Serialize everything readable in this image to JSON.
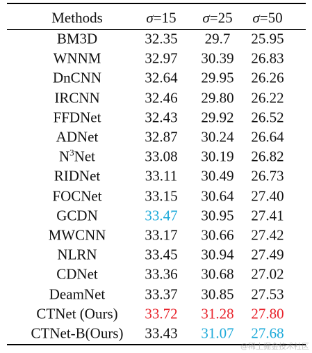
{
  "table": {
    "header": [
      "Methods",
      {
        "symbol": "σ",
        "text": "=15"
      },
      {
        "symbol": "σ",
        "text": "=25"
      },
      {
        "symbol": "σ",
        "text": "=50"
      }
    ],
    "rows": [
      [
        "BM3D",
        "32.35",
        "29.7",
        "25.95"
      ],
      [
        "WNNM",
        "32.97",
        "30.39",
        "26.83"
      ],
      [
        "DnCNN",
        "32.64",
        "29.95",
        "26.26"
      ],
      [
        "IRCNN",
        "32.46",
        "29.80",
        "26.22"
      ],
      [
        "FFDNet",
        "32.43",
        "29.92",
        "26.52"
      ],
      [
        "ADNet",
        "32.87",
        "30.24",
        "26.64"
      ],
      [
        {
          "base": "N",
          "sup": "3",
          "after": "Net"
        },
        "33.08",
        "30.19",
        "26.82"
      ],
      [
        "RIDNet",
        "33.11",
        "30.49",
        "26.73"
      ],
      [
        "FOCNet",
        "33.15",
        "30.64",
        "27.40"
      ],
      [
        "GCDN",
        {
          "text": "33.47",
          "color": "#1ba9d9"
        },
        "30.95",
        "27.41"
      ],
      [
        "MWCNN",
        "33.17",
        "30.66",
        "27.42"
      ],
      [
        "NLRN",
        "33.45",
        "30.94",
        "27.49"
      ],
      [
        "CDNet",
        "33.36",
        "30.68",
        "27.02"
      ],
      [
        "DeamNet",
        "33.37",
        "30.85",
        "27.53"
      ],
      [
        "CTNet (Ours)",
        {
          "text": "33.72",
          "color": "#e8232b"
        },
        {
          "text": "31.28",
          "color": "#e8232b"
        },
        {
          "text": "27.80",
          "color": "#e8232b"
        }
      ],
      [
        "CTNet-B(Ours)",
        "33.43",
        {
          "text": "31.07",
          "color": "#1ba9d9"
        },
        {
          "text": "27.68",
          "color": "#1ba9d9"
        }
      ]
    ]
  },
  "watermark": "@稀土掘金技术社区"
}
